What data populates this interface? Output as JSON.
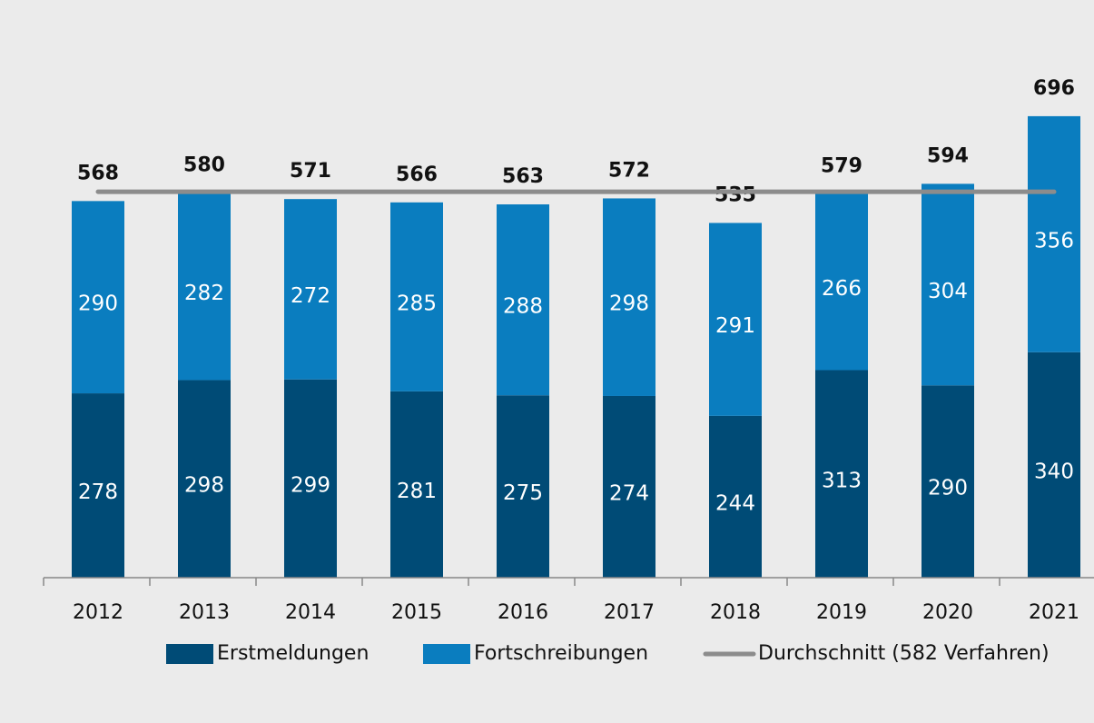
{
  "chart_data": {
    "type": "stacked-bar",
    "categories": [
      "2012",
      "2013",
      "2014",
      "2015",
      "2016",
      "2017",
      "2018",
      "2019",
      "2020",
      "2021"
    ],
    "series": [
      {
        "name": "Erstmeldungen",
        "color": "#004b76",
        "values": [
          278,
          298,
          299,
          281,
          275,
          274,
          244,
          313,
          290,
          340
        ]
      },
      {
        "name": "Fortschreibungen",
        "color": "#0a7dbf",
        "values": [
          290,
          282,
          272,
          285,
          288,
          298,
          291,
          266,
          304,
          356
        ]
      }
    ],
    "totals": [
      568,
      580,
      571,
      566,
      563,
      572,
      535,
      579,
      594,
      696
    ],
    "average": 582,
    "average_name": "Durchschnitt (582 Verfahren)",
    "average_color": "#8c8c8c",
    "ylim": [
      0,
      800
    ]
  }
}
